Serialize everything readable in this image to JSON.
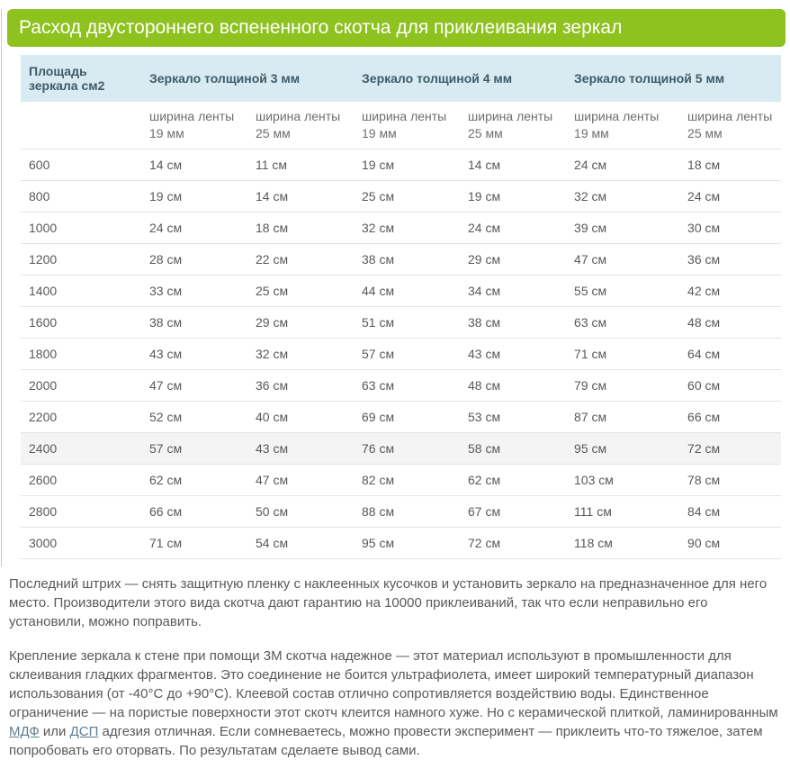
{
  "page": {
    "title": "Расход двустороннего вспененного скотча для приклеивания зеркал"
  },
  "table": {
    "area_header": "Площадь зеркала см2",
    "group_headers": [
      "Зеркало толщиной 3 мм",
      "Зеркало толщиной 4 мм",
      "Зеркало толщиной 5 мм"
    ],
    "sub_headers": [
      "ширина ленты 19 мм",
      "ширина ленты 25 мм",
      "ширина ленты 19 мм",
      "ширина ленты 25 мм",
      "ширина ленты 19 мм",
      "ширина ленты 25 мм"
    ],
    "rows": [
      {
        "area": "600",
        "values": [
          "14 см",
          "11 см",
          "19 см",
          "14 см",
          "24 см",
          "18 см"
        ]
      },
      {
        "area": "800",
        "values": [
          "19 см",
          "14 см",
          "25 см",
          "19 см",
          "32 см",
          "24 см"
        ]
      },
      {
        "area": "1000",
        "values": [
          "24 см",
          "18 см",
          "32 см",
          "24 см",
          "39 см",
          "30 см"
        ]
      },
      {
        "area": "1200",
        "values": [
          "28 см",
          "22 см",
          "38 см",
          "29 см",
          "47 см",
          "36 см"
        ]
      },
      {
        "area": "1400",
        "values": [
          "33 см",
          "25 см",
          "44 см",
          "34 см",
          "55 см",
          "42 см"
        ]
      },
      {
        "area": "1600",
        "values": [
          "38 см",
          "29 см",
          "51 см",
          "38 см",
          "63 см",
          "48 см"
        ]
      },
      {
        "area": "1800",
        "values": [
          "43 см",
          "32 см",
          "57 см",
          "43 см",
          "71 см",
          "64 см"
        ]
      },
      {
        "area": "2000",
        "values": [
          "47 см",
          "36 см",
          "63 см",
          "48 см",
          "79 см",
          "60 см"
        ]
      },
      {
        "area": "2200",
        "values": [
          "52 см",
          "40 см",
          "69 см",
          "53 см",
          "87 см",
          "66 см"
        ]
      },
      {
        "area": "2400",
        "values": [
          "57 см",
          "43 см",
          "76 см",
          "58 см",
          "95 см",
          "72 см"
        ]
      },
      {
        "area": "2600",
        "values": [
          "62 см",
          "47 см",
          "82 см",
          "62 см",
          "103 см",
          "78 см"
        ]
      },
      {
        "area": "2800",
        "values": [
          "66 см",
          "50 см",
          "88 см",
          "67 см",
          "111 см",
          "84 см"
        ]
      },
      {
        "area": "3000",
        "values": [
          "71 см",
          "54 см",
          "95 см",
          "72 см",
          "118 см",
          "90 см"
        ]
      }
    ],
    "highlighted_row": "2400"
  },
  "paragraphs": {
    "p1": "Последний штрих — снять защитную пленку с наклеенных кусочков и установить зеркало на предназначенное для него место. Производители этого вида скотча дают гарантию на 10000 приклеиваний, так что если неправильно его установили, можно поправить.",
    "p2_segments": [
      {
        "text": "Крепление зеркала к стене при помощи 3М скотча надежное — этот материал используют в промышленности для склеивания гладких фрагментов. Это соединение не боится ультрафиолета, имеет широкий температурный диапазон использования (от -40°С до +90°С). Клеевой состав отлично сопротивляется воздействию воды. Единственное ограничение — на пористые поверхности этот скотч клеится намного хуже. Но с керамической плиткой, ламинированным ",
        "link": false
      },
      {
        "text": "МДФ",
        "link": true
      },
      {
        "text": " или ",
        "link": false
      },
      {
        "text": "ДСП",
        "link": true
      },
      {
        "text": " адгезия отличная. Если сомневаетесь, можно провести эксперимент — приклеить что-то тяжелое, затем попробовать его оторвать. По результатам сделаете вывод сами.",
        "link": false
      }
    ]
  },
  "colors": {
    "title_bar_bg": "#8dc21f",
    "title_text": "#ffffff",
    "table_header_bg": "#d8eaf2",
    "table_header_text": "#3e5b68",
    "row_highlight_bg": "#f4f4f4",
    "row_border": "#e3e3e3",
    "body_text": "#595959",
    "link": "#5f7d91"
  }
}
